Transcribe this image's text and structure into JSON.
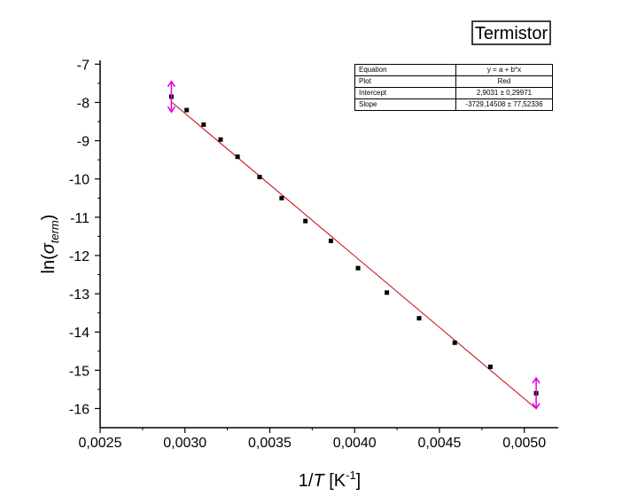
{
  "chart_data": {
    "type": "scatter",
    "title": "Termistor",
    "xlabel_pre": "1/",
    "xlabel_var": "T",
    "xlabel_unit_pre": " [K",
    "xlabel_unit_sup": "-1",
    "xlabel_unit_post": "]",
    "ylabel_pre": "ln(",
    "ylabel_sigma": "σ",
    "ylabel_sub": "term",
    "ylabel_post": ")",
    "xlim": [
      0.0025,
      0.0052
    ],
    "ylim": [
      -16.5,
      -6.9
    ],
    "xticks": [
      0.0025,
      0.003,
      0.0035,
      0.004,
      0.0045,
      0.005
    ],
    "xtick_labels": [
      "0,0025",
      "0,0030",
      "0,0035",
      "0,0040",
      "0,0045",
      "0,0050"
    ],
    "yticks": [
      -16,
      -15,
      -14,
      -13,
      -12,
      -11,
      -10,
      -9,
      -8,
      -7
    ],
    "ytick_labels": [
      "-16",
      "-15",
      "-14",
      "-13",
      "-12",
      "-11",
      "-10",
      "-9",
      "-8",
      "-7"
    ],
    "points": [
      [
        0.00292,
        -7.85
      ],
      [
        0.00301,
        -8.2
      ],
      [
        0.00311,
        -8.58
      ],
      [
        0.00321,
        -8.97
      ],
      [
        0.00331,
        -9.42
      ],
      [
        0.00344,
        -9.95
      ],
      [
        0.00357,
        -10.5
      ],
      [
        0.00371,
        -11.1
      ],
      [
        0.00386,
        -11.62
      ],
      [
        0.00402,
        -12.33
      ],
      [
        0.00419,
        -12.97
      ],
      [
        0.00438,
        -13.64
      ],
      [
        0.00459,
        -14.28
      ],
      [
        0.0048,
        -14.91
      ],
      [
        0.00507,
        -15.6
      ]
    ],
    "fit": {
      "intercept": 2.9031,
      "slope": -3729.14508,
      "x_range": [
        0.00292,
        0.00507
      ],
      "color": "#cc0000"
    },
    "error_bars": [
      {
        "x": 0.00292,
        "y": -7.85,
        "low": -8.25,
        "high": -7.45
      },
      {
        "x": 0.00507,
        "y": -15.6,
        "low": -16.0,
        "high": -15.2
      }
    ],
    "error_bar_color": "#e000e0",
    "fit_table": [
      {
        "key": "Equation",
        "value": "y = a + b*x"
      },
      {
        "key": "Plot",
        "value": "Red"
      },
      {
        "key": "Intercept",
        "value": "2,9031 ± 0,29971"
      },
      {
        "key": "Slope",
        "value": "-3729,14508 ± 77,52336"
      }
    ]
  }
}
